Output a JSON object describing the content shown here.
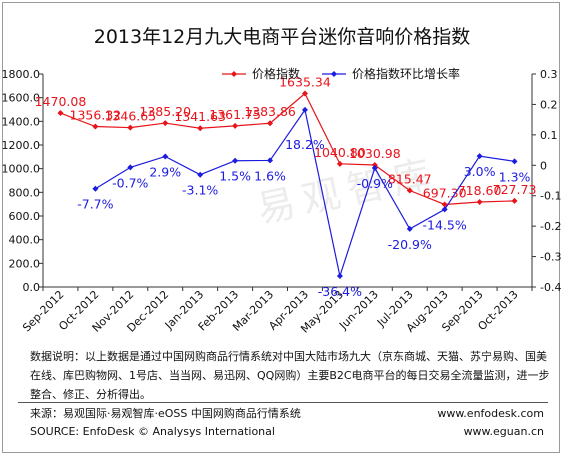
{
  "header": {
    "title": "2013年12月九大电商平台迷你音响价格指数"
  },
  "watermark": {
    "text": "易观智库"
  },
  "chart_data": {
    "type": "line",
    "categories": [
      "Sep-2012",
      "Oct-2012",
      "Nov-2012",
      "Dec-2012",
      "Jan-2013",
      "Feb-2013",
      "Mar-2013",
      "Apr-2013",
      "May-2013",
      "Jun-2013",
      "Jul-2013",
      "Aug-2013",
      "Sep-2013",
      "Oct-2013"
    ],
    "series": [
      {
        "name": "价格指数",
        "axis": "left",
        "color": "#e8141b",
        "marker": "diamond",
        "values": [
          1470.08,
          1356.32,
          1346.65,
          1385.2,
          1341.63,
          1361.75,
          1383.86,
          1635.34,
          1040.8,
          1030.98,
          815.47,
          697.3,
          718.6,
          727.73
        ],
        "labels": [
          "1470.08",
          "1356.32",
          "1346.65",
          "1385.20",
          "1341.63",
          "1361.75",
          "1383.86",
          "1635.34",
          "1040.80",
          "1030.98",
          "815.47",
          "697.30",
          "718.60",
          "727.73"
        ]
      },
      {
        "name": "价格指数环比增长率",
        "axis": "right",
        "color": "#1c1ce0",
        "marker": "diamond",
        "values": [
          null,
          -0.077,
          -0.007,
          0.029,
          -0.031,
          0.015,
          0.016,
          0.182,
          -0.364,
          -0.009,
          -0.209,
          -0.145,
          0.03,
          0.013
        ],
        "labels": [
          "",
          "-7.7%",
          "-0.7%",
          "2.9%",
          "-3.1%",
          "1.5%",
          "1.6%",
          "18.2%",
          "-36.4%",
          "-0.9%",
          "-20.9%",
          "-14.5%",
          "3.0%",
          "1.3%"
        ]
      }
    ],
    "y_left": {
      "min": 0,
      "max": 1800,
      "step": 200,
      "tick_labels": [
        "0.0",
        "200.0",
        "400.0",
        "600.0",
        "800.0",
        "1000.0",
        "1200.0",
        "1400.0",
        "1600.0",
        "1800.0"
      ]
    },
    "y_right": {
      "min": -0.4,
      "max": 0.3,
      "step": 0.1,
      "tick_labels": [
        "-0.4",
        "-0.3",
        "-0.2",
        "-0.1",
        "0",
        "0.1",
        "0.2",
        "0.3"
      ]
    },
    "grid": false,
    "legend_position": "top-right"
  },
  "footer": {
    "desc_lines": [
      "数据说明：以上数据是通过中国网购商品行情系统对中国大陆市场九大（京东商城、天猫、苏宁易购、国美",
      "在线、库巴购物网、1号店、当当网、易迅网、QQ网购）主要B2C电商平台的每日交易全流量监测，进一步",
      "整合、修正、分析得出。"
    ],
    "source_cn": "来源：易观国际·易观智库·eOSS 中国网购商品行情系统",
    "source_en": "SOURCE: EnfoDesk © Analysys International",
    "site1": "www.enfodesk.com",
    "site2": "www.eguan.cn"
  }
}
